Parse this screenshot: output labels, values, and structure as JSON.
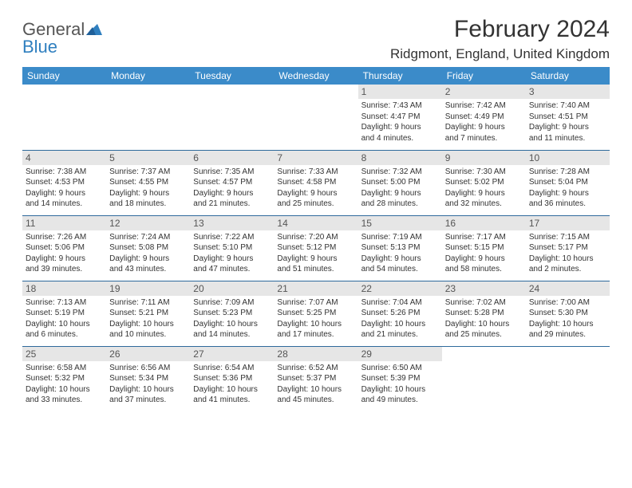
{
  "logo": {
    "textA": "General",
    "textB": "Blue"
  },
  "title": "February 2024",
  "location": "Ridgmont, England, United Kingdom",
  "header_bg": "#3b8bc9",
  "daynum_bg": "#e6e6e6",
  "border_color": "#2f6a9c",
  "day_headers": [
    "Sunday",
    "Monday",
    "Tuesday",
    "Wednesday",
    "Thursday",
    "Friday",
    "Saturday"
  ],
  "weeks": [
    [
      null,
      null,
      null,
      null,
      {
        "n": "1",
        "sr": "Sunrise: 7:43 AM",
        "ss": "Sunset: 4:47 PM",
        "d1": "Daylight: 9 hours",
        "d2": "and 4 minutes."
      },
      {
        "n": "2",
        "sr": "Sunrise: 7:42 AM",
        "ss": "Sunset: 4:49 PM",
        "d1": "Daylight: 9 hours",
        "d2": "and 7 minutes."
      },
      {
        "n": "3",
        "sr": "Sunrise: 7:40 AM",
        "ss": "Sunset: 4:51 PM",
        "d1": "Daylight: 9 hours",
        "d2": "and 11 minutes."
      }
    ],
    [
      {
        "n": "4",
        "sr": "Sunrise: 7:38 AM",
        "ss": "Sunset: 4:53 PM",
        "d1": "Daylight: 9 hours",
        "d2": "and 14 minutes."
      },
      {
        "n": "5",
        "sr": "Sunrise: 7:37 AM",
        "ss": "Sunset: 4:55 PM",
        "d1": "Daylight: 9 hours",
        "d2": "and 18 minutes."
      },
      {
        "n": "6",
        "sr": "Sunrise: 7:35 AM",
        "ss": "Sunset: 4:57 PM",
        "d1": "Daylight: 9 hours",
        "d2": "and 21 minutes."
      },
      {
        "n": "7",
        "sr": "Sunrise: 7:33 AM",
        "ss": "Sunset: 4:58 PM",
        "d1": "Daylight: 9 hours",
        "d2": "and 25 minutes."
      },
      {
        "n": "8",
        "sr": "Sunrise: 7:32 AM",
        "ss": "Sunset: 5:00 PM",
        "d1": "Daylight: 9 hours",
        "d2": "and 28 minutes."
      },
      {
        "n": "9",
        "sr": "Sunrise: 7:30 AM",
        "ss": "Sunset: 5:02 PM",
        "d1": "Daylight: 9 hours",
        "d2": "and 32 minutes."
      },
      {
        "n": "10",
        "sr": "Sunrise: 7:28 AM",
        "ss": "Sunset: 5:04 PM",
        "d1": "Daylight: 9 hours",
        "d2": "and 36 minutes."
      }
    ],
    [
      {
        "n": "11",
        "sr": "Sunrise: 7:26 AM",
        "ss": "Sunset: 5:06 PM",
        "d1": "Daylight: 9 hours",
        "d2": "and 39 minutes."
      },
      {
        "n": "12",
        "sr": "Sunrise: 7:24 AM",
        "ss": "Sunset: 5:08 PM",
        "d1": "Daylight: 9 hours",
        "d2": "and 43 minutes."
      },
      {
        "n": "13",
        "sr": "Sunrise: 7:22 AM",
        "ss": "Sunset: 5:10 PM",
        "d1": "Daylight: 9 hours",
        "d2": "and 47 minutes."
      },
      {
        "n": "14",
        "sr": "Sunrise: 7:20 AM",
        "ss": "Sunset: 5:12 PM",
        "d1": "Daylight: 9 hours",
        "d2": "and 51 minutes."
      },
      {
        "n": "15",
        "sr": "Sunrise: 7:19 AM",
        "ss": "Sunset: 5:13 PM",
        "d1": "Daylight: 9 hours",
        "d2": "and 54 minutes."
      },
      {
        "n": "16",
        "sr": "Sunrise: 7:17 AM",
        "ss": "Sunset: 5:15 PM",
        "d1": "Daylight: 9 hours",
        "d2": "and 58 minutes."
      },
      {
        "n": "17",
        "sr": "Sunrise: 7:15 AM",
        "ss": "Sunset: 5:17 PM",
        "d1": "Daylight: 10 hours",
        "d2": "and 2 minutes."
      }
    ],
    [
      {
        "n": "18",
        "sr": "Sunrise: 7:13 AM",
        "ss": "Sunset: 5:19 PM",
        "d1": "Daylight: 10 hours",
        "d2": "and 6 minutes."
      },
      {
        "n": "19",
        "sr": "Sunrise: 7:11 AM",
        "ss": "Sunset: 5:21 PM",
        "d1": "Daylight: 10 hours",
        "d2": "and 10 minutes."
      },
      {
        "n": "20",
        "sr": "Sunrise: 7:09 AM",
        "ss": "Sunset: 5:23 PM",
        "d1": "Daylight: 10 hours",
        "d2": "and 14 minutes."
      },
      {
        "n": "21",
        "sr": "Sunrise: 7:07 AM",
        "ss": "Sunset: 5:25 PM",
        "d1": "Daylight: 10 hours",
        "d2": "and 17 minutes."
      },
      {
        "n": "22",
        "sr": "Sunrise: 7:04 AM",
        "ss": "Sunset: 5:26 PM",
        "d1": "Daylight: 10 hours",
        "d2": "and 21 minutes."
      },
      {
        "n": "23",
        "sr": "Sunrise: 7:02 AM",
        "ss": "Sunset: 5:28 PM",
        "d1": "Daylight: 10 hours",
        "d2": "and 25 minutes."
      },
      {
        "n": "24",
        "sr": "Sunrise: 7:00 AM",
        "ss": "Sunset: 5:30 PM",
        "d1": "Daylight: 10 hours",
        "d2": "and 29 minutes."
      }
    ],
    [
      {
        "n": "25",
        "sr": "Sunrise: 6:58 AM",
        "ss": "Sunset: 5:32 PM",
        "d1": "Daylight: 10 hours",
        "d2": "and 33 minutes."
      },
      {
        "n": "26",
        "sr": "Sunrise: 6:56 AM",
        "ss": "Sunset: 5:34 PM",
        "d1": "Daylight: 10 hours",
        "d2": "and 37 minutes."
      },
      {
        "n": "27",
        "sr": "Sunrise: 6:54 AM",
        "ss": "Sunset: 5:36 PM",
        "d1": "Daylight: 10 hours",
        "d2": "and 41 minutes."
      },
      {
        "n": "28",
        "sr": "Sunrise: 6:52 AM",
        "ss": "Sunset: 5:37 PM",
        "d1": "Daylight: 10 hours",
        "d2": "and 45 minutes."
      },
      {
        "n": "29",
        "sr": "Sunrise: 6:50 AM",
        "ss": "Sunset: 5:39 PM",
        "d1": "Daylight: 10 hours",
        "d2": "and 49 minutes."
      },
      null,
      null
    ]
  ]
}
